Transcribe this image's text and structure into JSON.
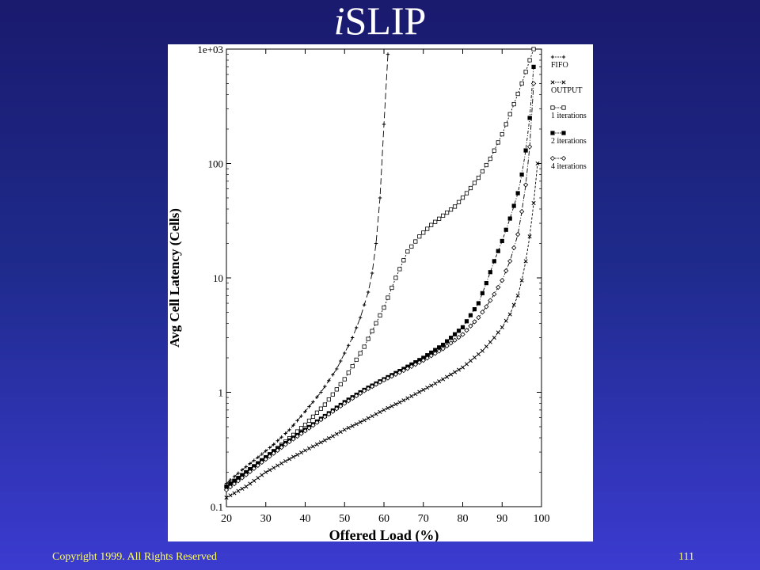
{
  "slide": {
    "title_italic": "i",
    "title_rest": "SLIP",
    "copyright": "Copyright 1999. All Rights Reserved",
    "page_number": "111"
  },
  "chart_data": {
    "type": "line",
    "xlabel": "Offered Load (%)",
    "ylabel": "Avg Cell Latency (Cells)",
    "xlim": [
      20,
      100
    ],
    "ylim": [
      0.1,
      1000
    ],
    "yscale": "log",
    "x_ticks": [
      20,
      30,
      40,
      50,
      60,
      70,
      80,
      90,
      100
    ],
    "x_tick_labels": [
      "20",
      "30",
      "40",
      "50",
      "60",
      "70",
      "80",
      "90",
      "100"
    ],
    "y_ticks": [
      0.1,
      1,
      10,
      100,
      1000
    ],
    "y_tick_labels": [
      "0.1",
      "1",
      "10",
      "100",
      "1e+03"
    ],
    "legend_position": "right-outside-top",
    "series": [
      {
        "name": "FIFO",
        "marker": "+",
        "dash": "8,4",
        "x": [
          20,
          24,
          28,
          32,
          36,
          40,
          44,
          48,
          50,
          52,
          54,
          56,
          57,
          58,
          59,
          60,
          61
        ],
        "y": [
          0.16,
          0.21,
          0.27,
          0.35,
          0.47,
          0.68,
          1.0,
          1.6,
          2.2,
          3.0,
          4.5,
          7.5,
          11,
          20,
          50,
          220,
          900
        ]
      },
      {
        "name": "OUTPUT",
        "marker": "x",
        "dash": "3,2",
        "x": [
          20,
          25,
          30,
          35,
          40,
          45,
          50,
          55,
          60,
          65,
          70,
          75,
          80,
          85,
          88,
          90,
          92,
          94,
          95,
          96,
          97,
          98,
          99
        ],
        "y": [
          0.12,
          0.15,
          0.2,
          0.25,
          0.31,
          0.38,
          0.47,
          0.57,
          0.7,
          0.85,
          1.05,
          1.3,
          1.65,
          2.3,
          3.0,
          3.7,
          4.8,
          7.0,
          9.5,
          14,
          23,
          45,
          100
        ]
      },
      {
        "name": "1 iterations",
        "marker": "square",
        "dash": "2,2",
        "x": [
          20,
          25,
          30,
          35,
          40,
          45,
          50,
          55,
          60,
          63,
          66,
          69,
          72,
          75,
          78,
          81,
          84,
          87,
          90,
          93,
          95,
          97,
          98
        ],
        "y": [
          0.15,
          0.2,
          0.27,
          0.37,
          0.52,
          0.78,
          1.3,
          2.5,
          5.5,
          10,
          17,
          23,
          29,
          35,
          42,
          55,
          75,
          110,
          180,
          330,
          500,
          800,
          1000
        ]
      },
      {
        "name": "2 iterations",
        "marker": "filled-square",
        "dash": "4,2,1,2",
        "x": [
          20,
          25,
          30,
          35,
          40,
          45,
          50,
          55,
          60,
          65,
          70,
          75,
          80,
          84,
          86,
          88,
          90,
          92,
          94,
          95,
          96,
          97,
          98
        ],
        "y": [
          0.15,
          0.2,
          0.27,
          0.36,
          0.47,
          0.62,
          0.82,
          1.05,
          1.3,
          1.6,
          2.0,
          2.6,
          3.7,
          6,
          9,
          14,
          21,
          33,
          55,
          80,
          130,
          250,
          700
        ]
      },
      {
        "name": "4 iterations",
        "marker": "diamond",
        "dash": "6,2,1,2",
        "x": [
          20,
          25,
          30,
          35,
          40,
          45,
          50,
          55,
          60,
          65,
          70,
          75,
          80,
          84,
          86,
          88,
          90,
          92,
          94,
          95,
          96,
          97,
          98
        ],
        "y": [
          0.14,
          0.19,
          0.26,
          0.35,
          0.46,
          0.61,
          0.8,
          1.03,
          1.28,
          1.55,
          1.9,
          2.4,
          3.2,
          4.5,
          5.6,
          7.2,
          9.5,
          14,
          24,
          38,
          65,
          140,
          500
        ]
      }
    ]
  }
}
